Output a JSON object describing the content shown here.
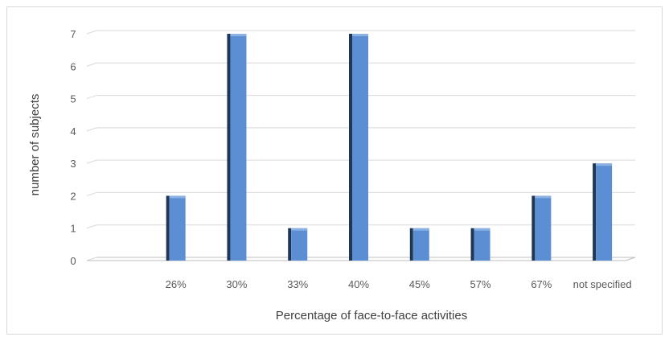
{
  "chart_data": {
    "type": "bar",
    "title": "",
    "xlabel": "Percentage of face-to-face activities",
    "ylabel": "number of subjects",
    "categories": [
      "",
      "26%",
      "30%",
      "33%",
      "40%",
      "45%",
      "57%",
      "67%",
      "not specified"
    ],
    "values": [
      0,
      2,
      7,
      1,
      7,
      1,
      1,
      2,
      3
    ],
    "ylim": [
      0,
      7
    ],
    "yticks": [
      0,
      1,
      2,
      3,
      4,
      5,
      6,
      7
    ],
    "grid": true,
    "legend": "none",
    "bar_style": "3d",
    "colors": {
      "bar_front": "#5b8ed2",
      "bar_side": "#1f3654",
      "bar_top": "#9fc0ea",
      "gridline": "#d9d9d9",
      "axis": "#bfbfbf"
    }
  }
}
